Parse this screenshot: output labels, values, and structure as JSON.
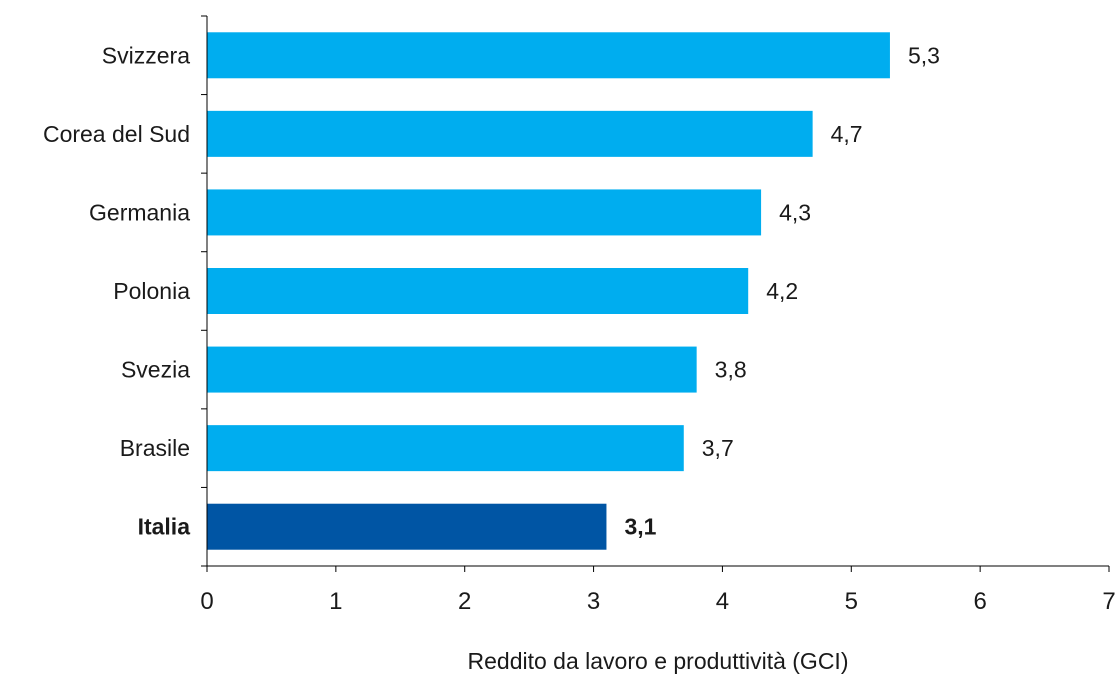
{
  "chart_data": {
    "type": "bar",
    "orientation": "horizontal",
    "categories": [
      "Svizzera",
      "Corea del Sud",
      "Germania",
      "Polonia",
      "Svezia",
      "Brasile",
      "Italia"
    ],
    "values": [
      5.3,
      4.7,
      4.3,
      4.2,
      3.8,
      3.7,
      3.1
    ],
    "value_labels": [
      "5,3",
      "4,7",
      "4,3",
      "4,2",
      "3,8",
      "3,7",
      "3,1"
    ],
    "highlighted_category": "Italia",
    "xlabel": "Reddito da lavoro e produttività (GCI)",
    "ylabel": "",
    "xlim": [
      0,
      7
    ],
    "xticks": [
      0,
      1,
      2,
      3,
      4,
      5,
      6,
      7
    ],
    "grid": false,
    "legend": "none",
    "colors": {
      "bar": "#00adef",
      "highlight_bar": "#0055a4",
      "axis": "#000000",
      "text": "#1a1a1a"
    }
  }
}
